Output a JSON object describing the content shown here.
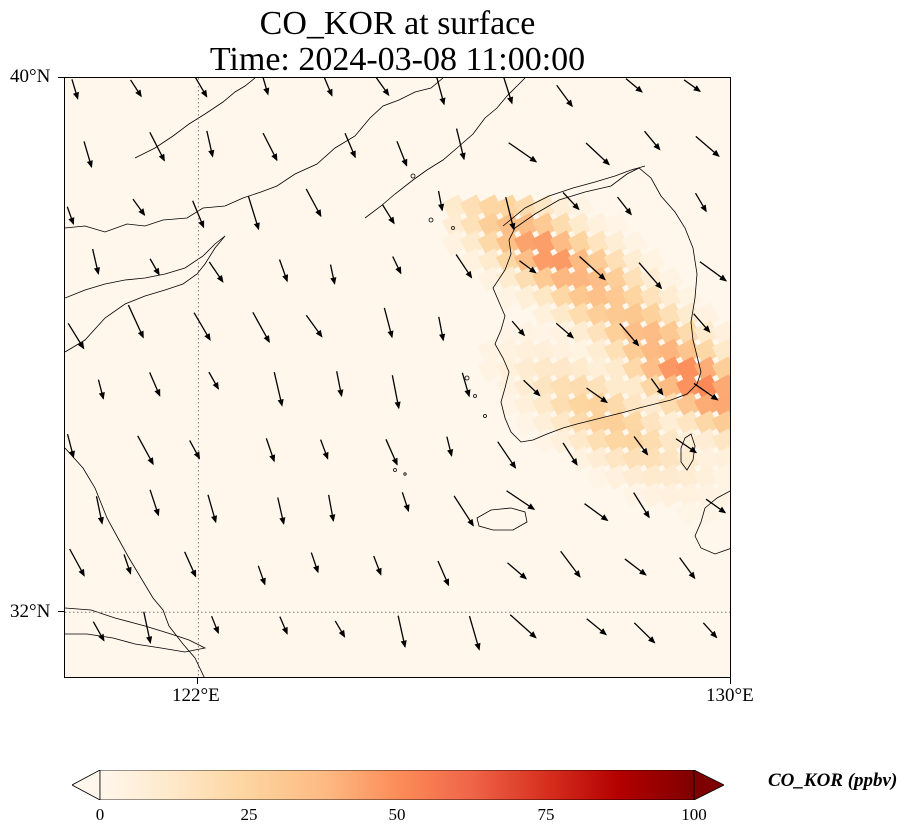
{
  "title": {
    "line1": "CO_KOR at surface",
    "line2": "Time: 2024-03-08 11:00:00"
  },
  "axes": {
    "lat_labels": [
      "40°N",
      "32°N"
    ],
    "lon_labels": [
      "122°E",
      "130°E"
    ],
    "lon_range": [
      120,
      130
    ],
    "lat_range": [
      31,
      40
    ],
    "gridlines": {
      "lon": [
        122
      ],
      "lat": [
        32
      ],
      "style": "dotted"
    }
  },
  "colorbar": {
    "label": "CO_KOR (ppbv)",
    "ticks": [
      "0",
      "25",
      "50",
      "75",
      "100"
    ],
    "range": [
      0,
      100
    ],
    "colormap": "OrRd",
    "extend": "both",
    "colors": [
      "#fff7ec",
      "#fee8c8",
      "#fdd49e",
      "#fdbb84",
      "#fc8d59",
      "#ef6548",
      "#d7301f",
      "#b30000",
      "#7f0000"
    ]
  },
  "chart_data": {
    "type": "heatmap",
    "title": "CO_KOR at surface\nTime: 2024-03-08 11:00:00",
    "variable": "CO_KOR",
    "units": "ppbv",
    "xlabel": "",
    "ylabel": "",
    "xlim": [
      120,
      130
    ],
    "ylim": [
      31,
      40
    ],
    "plume_points": [
      {
        "lon": 127.1,
        "lat": 37.5,
        "value": 48
      },
      {
        "lon": 127.5,
        "lat": 37.3,
        "value": 40
      },
      {
        "lon": 127.8,
        "lat": 36.9,
        "value": 35
      },
      {
        "lon": 128.3,
        "lat": 36.6,
        "value": 32
      },
      {
        "lon": 128.8,
        "lat": 36.1,
        "value": 40
      },
      {
        "lon": 129.3,
        "lat": 35.6,
        "value": 52
      },
      {
        "lon": 129.6,
        "lat": 35.3,
        "value": 30
      },
      {
        "lon": 128.0,
        "lat": 35.0,
        "value": 28
      },
      {
        "lon": 130.0,
        "lat": 34.8,
        "value": 12
      }
    ]
  }
}
